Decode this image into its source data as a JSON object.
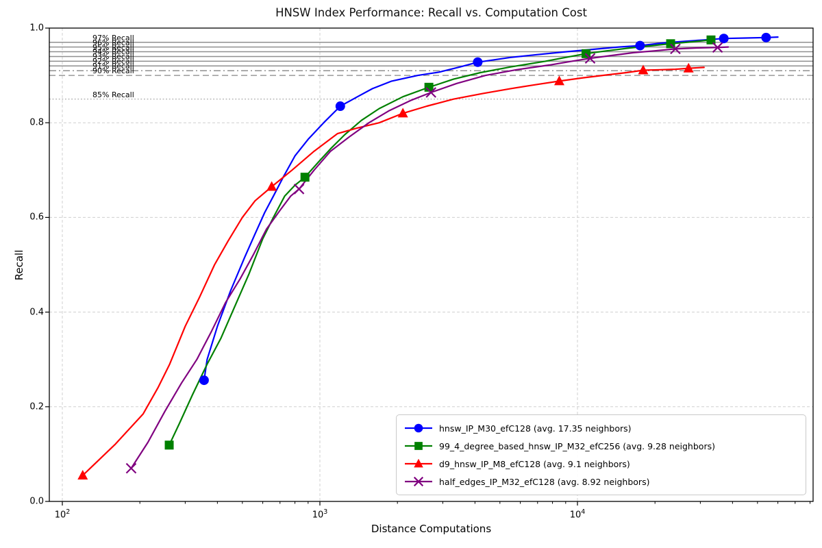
{
  "title": "HNSW Index Performance: Recall vs. Computation Cost",
  "chart_data": {
    "type": "line",
    "title": "HNSW Index Performance: Recall vs. Computation Cost",
    "xlabel": "Distance Computations",
    "ylabel": "Recall",
    "x_scale": "log",
    "xlim": [
      89,
      81000
    ],
    "ylim": [
      0.0,
      1.0
    ],
    "grid": "dashed light-gray at decades and 0.2 recall steps",
    "legend_position": "lower right",
    "x_ticks": [
      {
        "value": 100,
        "mantissa": "10",
        "exponent": "2"
      },
      {
        "value": 1000,
        "mantissa": "10",
        "exponent": "3"
      },
      {
        "value": 10000,
        "mantissa": "10",
        "exponent": "4"
      }
    ],
    "y_ticks": [
      {
        "value": 0.0,
        "label": "0.0"
      },
      {
        "value": 0.2,
        "label": "0.2"
      },
      {
        "value": 0.4,
        "label": "0.4"
      },
      {
        "value": 0.6,
        "label": "0.6"
      },
      {
        "value": 0.8,
        "label": "0.8"
      },
      {
        "value": 1.0,
        "label": "1.0"
      }
    ],
    "reference_lines": [
      {
        "value": 0.97,
        "label": "97% Recall",
        "style": "solid",
        "color": "#8f8f8f"
      },
      {
        "value": 0.96,
        "label": "96% Recall",
        "style": "solid",
        "color": "#8f8f8f"
      },
      {
        "value": 0.95,
        "label": "95% Recall",
        "style": "solid",
        "color": "#8f8f8f"
      },
      {
        "value": 0.94,
        "label": "94% Recall",
        "style": "solid",
        "color": "#8f8f8f"
      },
      {
        "value": 0.93,
        "label": "93% Recall",
        "style": "solid",
        "color": "#8f8f8f"
      },
      {
        "value": 0.92,
        "label": "92% Recall",
        "style": "solid",
        "color": "#8f8f8f"
      },
      {
        "value": 0.91,
        "label": "91% Recall",
        "style": "dashdot",
        "color": "#8f8f8f"
      },
      {
        "value": 0.9,
        "label": "90% Recall",
        "style": "dashed",
        "color": "#9a9a9a"
      },
      {
        "value": 0.85,
        "label": "85% Recall",
        "style": "dotted",
        "color": "#a8a8a8"
      }
    ],
    "series": [
      {
        "name": "hnsw_IP_M30_efC128",
        "legend_label": "hnsw_IP_M30_efC128 (avg. 17.35 neighbors)",
        "color": "#0000ff",
        "marker": "circle",
        "points": [
          [
            355,
            0.256
          ],
          [
            1200,
            0.835
          ],
          [
            4100,
            0.928
          ],
          [
            17500,
            0.963
          ],
          [
            37000,
            0.978
          ],
          [
            54000,
            0.98
          ]
        ],
        "curve": [
          [
            355,
            0.256
          ],
          [
            365,
            0.3
          ],
          [
            400,
            0.37
          ],
          [
            450,
            0.445
          ],
          [
            510,
            0.515
          ],
          [
            560,
            0.565
          ],
          [
            610,
            0.61
          ],
          [
            660,
            0.645
          ],
          [
            720,
            0.685
          ],
          [
            800,
            0.73
          ],
          [
            900,
            0.765
          ],
          [
            1034,
            0.8
          ],
          [
            1200,
            0.835
          ],
          [
            1400,
            0.855
          ],
          [
            1600,
            0.872
          ],
          [
            1900,
            0.888
          ],
          [
            2400,
            0.9
          ],
          [
            2900,
            0.907
          ],
          [
            3500,
            0.918
          ],
          [
            4100,
            0.928
          ],
          [
            5500,
            0.938
          ],
          [
            7000,
            0.944
          ],
          [
            9000,
            0.95
          ],
          [
            12000,
            0.956
          ],
          [
            14500,
            0.96
          ],
          [
            17500,
            0.963
          ],
          [
            21000,
            0.968
          ],
          [
            26000,
            0.972
          ],
          [
            31000,
            0.975
          ],
          [
            37000,
            0.978
          ],
          [
            45000,
            0.979
          ],
          [
            54000,
            0.98
          ],
          [
            60000,
            0.981
          ]
        ]
      },
      {
        "name": "99_4_degree_based_hnsw_IP_M32_efC256",
        "legend_label": "99_4_degree_based_hnsw_IP_M32_efC256 (avg. 9.28 neighbors)",
        "color": "#008000",
        "marker": "square",
        "points": [
          [
            260,
            0.119
          ],
          [
            875,
            0.685
          ],
          [
            2650,
            0.875
          ],
          [
            10800,
            0.946
          ],
          [
            23000,
            0.967
          ],
          [
            33000,
            0.975
          ]
        ],
        "curve": [
          [
            260,
            0.119
          ],
          [
            285,
            0.165
          ],
          [
            320,
            0.225
          ],
          [
            365,
            0.29
          ],
          [
            413,
            0.345
          ],
          [
            470,
            0.415
          ],
          [
            530,
            0.48
          ],
          [
            600,
            0.555
          ],
          [
            660,
            0.6
          ],
          [
            730,
            0.645
          ],
          [
            800,
            0.668
          ],
          [
            875,
            0.685
          ],
          [
            980,
            0.715
          ],
          [
            1100,
            0.745
          ],
          [
            1250,
            0.775
          ],
          [
            1450,
            0.805
          ],
          [
            1700,
            0.83
          ],
          [
            2100,
            0.855
          ],
          [
            2650,
            0.875
          ],
          [
            3300,
            0.892
          ],
          [
            4200,
            0.906
          ],
          [
            5500,
            0.918
          ],
          [
            7500,
            0.93
          ],
          [
            9000,
            0.938
          ],
          [
            10800,
            0.946
          ],
          [
            13000,
            0.952
          ],
          [
            16000,
            0.958
          ],
          [
            19500,
            0.963
          ],
          [
            23000,
            0.967
          ],
          [
            28000,
            0.971
          ],
          [
            33000,
            0.975
          ]
        ]
      },
      {
        "name": "d9_hnsw_IP_M8_efC128",
        "legend_label": "d9_hnsw_IP_M8_efC128 (avg. 9.1 neighbors)",
        "color": "#ff0000",
        "marker": "triangle",
        "points": [
          [
            120,
            0.055
          ],
          [
            650,
            0.665
          ],
          [
            2100,
            0.82
          ],
          [
            8500,
            0.888
          ],
          [
            18000,
            0.911
          ],
          [
            27000,
            0.915
          ]
        ],
        "curve": [
          [
            120,
            0.055
          ],
          [
            160,
            0.12
          ],
          [
            206,
            0.185
          ],
          [
            235,
            0.24
          ],
          [
            261,
            0.29
          ],
          [
            300,
            0.37
          ],
          [
            340,
            0.43
          ],
          [
            390,
            0.5
          ],
          [
            440,
            0.55
          ],
          [
            500,
            0.6
          ],
          [
            560,
            0.635
          ],
          [
            650,
            0.665
          ],
          [
            780,
            0.7
          ],
          [
            950,
            0.74
          ],
          [
            1170,
            0.777
          ],
          [
            1400,
            0.789
          ],
          [
            1700,
            0.8
          ],
          [
            2100,
            0.82
          ],
          [
            2600,
            0.835
          ],
          [
            3300,
            0.85
          ],
          [
            4300,
            0.862
          ],
          [
            5500,
            0.872
          ],
          [
            7000,
            0.881
          ],
          [
            8500,
            0.888
          ],
          [
            10500,
            0.895
          ],
          [
            13000,
            0.901
          ],
          [
            15500,
            0.906
          ],
          [
            18000,
            0.911
          ],
          [
            21000,
            0.912
          ],
          [
            24000,
            0.913
          ],
          [
            27000,
            0.915
          ],
          [
            31000,
            0.917
          ]
        ]
      },
      {
        "name": "half_edges_IP_M32_efC128",
        "legend_label": "half_edges_IP_M32_efC128 (avg. 8.92 neighbors)",
        "color": "#800080",
        "marker": "x",
        "points": [
          [
            185,
            0.07
          ],
          [
            830,
            0.66
          ],
          [
            2700,
            0.864
          ],
          [
            11200,
            0.936
          ],
          [
            24000,
            0.956
          ],
          [
            35000,
            0.959
          ]
        ],
        "curve": [
          [
            185,
            0.07
          ],
          [
            215,
            0.125
          ],
          [
            250,
            0.19
          ],
          [
            290,
            0.25
          ],
          [
            333,
            0.3
          ],
          [
            380,
            0.36
          ],
          [
            430,
            0.42
          ],
          [
            490,
            0.47
          ],
          [
            550,
            0.52
          ],
          [
            620,
            0.575
          ],
          [
            700,
            0.615
          ],
          [
            770,
            0.645
          ],
          [
            830,
            0.66
          ],
          [
            950,
            0.7
          ],
          [
            1100,
            0.74
          ],
          [
            1300,
            0.77
          ],
          [
            1550,
            0.8
          ],
          [
            1850,
            0.825
          ],
          [
            2250,
            0.847
          ],
          [
            2700,
            0.864
          ],
          [
            3400,
            0.883
          ],
          [
            4400,
            0.9
          ],
          [
            5800,
            0.912
          ],
          [
            7800,
            0.922
          ],
          [
            9500,
            0.93
          ],
          [
            11200,
            0.936
          ],
          [
            13500,
            0.942
          ],
          [
            16500,
            0.948
          ],
          [
            20000,
            0.952
          ],
          [
            24000,
            0.956
          ],
          [
            29000,
            0.958
          ],
          [
            35000,
            0.959
          ],
          [
            38500,
            0.96
          ]
        ]
      }
    ]
  }
}
